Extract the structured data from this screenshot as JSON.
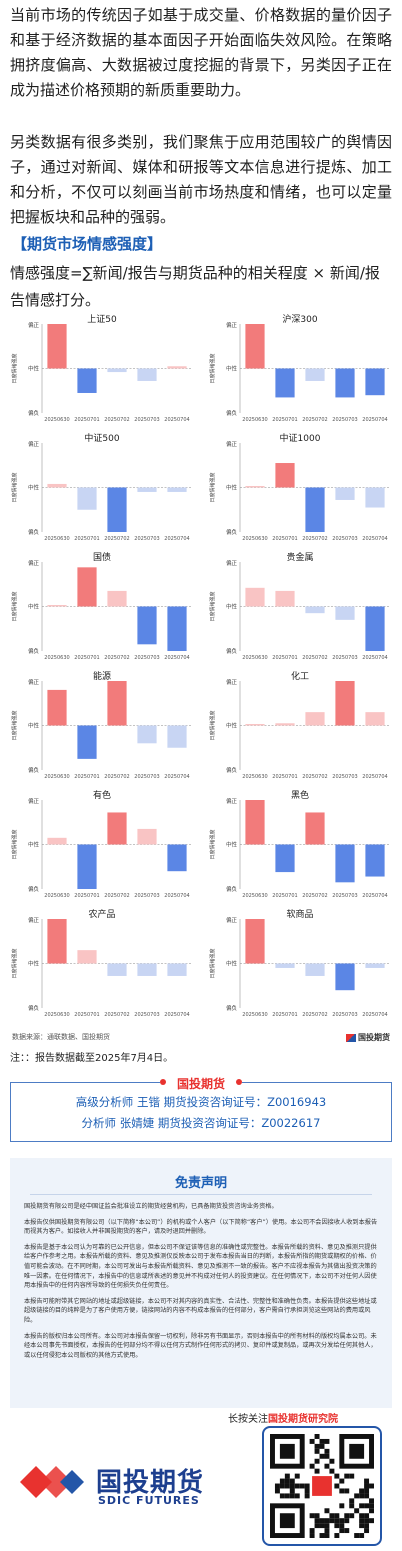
{
  "article": {
    "para1": "当前市场的传统因子如基于成交量、价格数据的量价因子和基于经济数据的基本面因子开始面临失效风险。在策略拥挤度偏高、大数据被过度挖掘的背景下，另类因子正在成为描述价格预期的新质重要助力。",
    "para2": "另类数据有很多类别，我们聚焦于应用范围较广的舆情因子，通过对新闻、媒体和研报等文本信息进行提炼、加工和分析，不仅可以刻画当前市场热度和情绪，也可以定量把握板块和品种的强弱。",
    "section_title": "【期货市场情感强度】",
    "formula": "情感强度=∑新闻/报告与期货品种的相关程度 × 新闻/报告情感打分。"
  },
  "chart_common": {
    "y_top_label": "偏正",
    "y_mid_label": "中性",
    "y_bottom_label": "偏负",
    "y_axis_title": "日度情绪强度",
    "dates": [
      "20250630",
      "20250701",
      "20250702",
      "20250703",
      "20250704"
    ]
  },
  "chart_data": [
    {
      "type": "bar",
      "title": "上证50",
      "categories": [
        "20250630",
        "20250701",
        "20250702",
        "20250703",
        "20250704"
      ],
      "values": [
        1.0,
        -0.55,
        -0.08,
        -0.28,
        0.05
      ],
      "ylim": [
        -1,
        1
      ]
    },
    {
      "type": "bar",
      "title": "沪深300",
      "categories": [
        "20250630",
        "20250701",
        "20250702",
        "20250703",
        "20250704"
      ],
      "values": [
        1.0,
        -0.65,
        -0.28,
        -0.65,
        -0.6
      ],
      "ylim": [
        -1,
        1
      ]
    },
    {
      "type": "bar",
      "title": "中证500",
      "categories": [
        "20250630",
        "20250701",
        "20250702",
        "20250703",
        "20250704"
      ],
      "values": [
        0.08,
        -0.5,
        -1.0,
        -0.1,
        -0.1
      ],
      "ylim": [
        -1,
        1
      ]
    },
    {
      "type": "bar",
      "title": "中证1000",
      "categories": [
        "20250630",
        "20250701",
        "20250702",
        "20250703",
        "20250704"
      ],
      "values": [
        0.0,
        0.55,
        -1.0,
        -0.28,
        -0.45
      ],
      "ylim": [
        -1,
        1
      ]
    },
    {
      "type": "bar",
      "title": "国债",
      "categories": [
        "20250630",
        "20250701",
        "20250702",
        "20250703",
        "20250704"
      ],
      "values": [
        0.0,
        0.88,
        0.35,
        -0.85,
        -1.0
      ],
      "ylim": [
        -1,
        1
      ]
    },
    {
      "type": "bar",
      "title": "贵金属",
      "categories": [
        "20250630",
        "20250701",
        "20250702",
        "20250703",
        "20250704"
      ],
      "values": [
        0.42,
        0.35,
        -0.15,
        -0.3,
        -1.0
      ],
      "ylim": [
        -1,
        1
      ]
    },
    {
      "type": "bar",
      "title": "能源",
      "categories": [
        "20250630",
        "20250701",
        "20250702",
        "20250703",
        "20250704"
      ],
      "values": [
        0.8,
        -0.75,
        1.0,
        -0.4,
        -0.5
      ],
      "ylim": [
        -1,
        1
      ]
    },
    {
      "type": "bar",
      "title": "化工",
      "categories": [
        "20250630",
        "20250701",
        "20250702",
        "20250703",
        "20250704"
      ],
      "values": [
        0.0,
        0.05,
        0.3,
        1.0,
        0.3
      ],
      "ylim": [
        -1,
        1
      ]
    },
    {
      "type": "bar",
      "title": "有色",
      "categories": [
        "20250630",
        "20250701",
        "20250702",
        "20250703",
        "20250704"
      ],
      "values": [
        0.15,
        -1.0,
        0.72,
        0.35,
        -0.6
      ],
      "ylim": [
        -1,
        1
      ]
    },
    {
      "type": "bar",
      "title": "黑色",
      "categories": [
        "20250630",
        "20250701",
        "20250702",
        "20250703",
        "20250704"
      ],
      "values": [
        1.0,
        -0.62,
        0.72,
        -0.85,
        -0.72
      ],
      "ylim": [
        -1,
        1
      ]
    },
    {
      "type": "bar",
      "title": "农产品",
      "categories": [
        "20250630",
        "20250701",
        "20250702",
        "20250703",
        "20250704"
      ],
      "values": [
        1.0,
        0.3,
        -0.28,
        -0.28,
        -0.28
      ],
      "ylim": [
        -1,
        1
      ]
    },
    {
      "type": "bar",
      "title": "软商品",
      "categories": [
        "20250630",
        "20250701",
        "20250702",
        "20250703",
        "20250704"
      ],
      "values": [
        1.0,
        -0.1,
        -0.28,
        -0.6,
        -0.1
      ],
      "ylim": [
        -1,
        1
      ]
    }
  ],
  "source": {
    "text": "数据来源：通联数据、国投期货",
    "logo_text": "国投期货"
  },
  "note": "注：：报告数据截至2025年7月4日。",
  "analyst": {
    "header": "国投期货",
    "line1": "高级分析师  王锴  期货投资咨询证号：Z0016943",
    "line2": "分析师  张婧婕  期货投资咨询证号：Z0022617"
  },
  "disclaimer": {
    "title": "免责声明",
    "paragraphs": [
      "国投期货有限公司是经中国证监会批准设立的期货经营机构，已具备期货投资咨询业务资格。",
      "本报告仅供国投期货有限公司（以下简称“本公司”）的机构或个人客户（以下简称“客户”）使用。本公司不会因接收人收到本报告而视其为客户。如接收人并非国投期货的客户，请及时退回并删除。",
      "本报告是基于本公司认为可靠的已公开信息，但本公司不保证该等信息的准确性或完整性。本报告所载的资料、意见及推测只提供给客户作参考之用。本报告所载的资料、意见及推测仅反映本公司于发布本报告当日的判断，本报告所指的期货或期权的价格、价值可能会波动。在不同时期，本公司可发出与本报告所载资料、意见及推测不一致的报告。客户不应视本报告为其做出投资决策的唯一因素。在任何情况下，本报告中的信息或所表述的意见并不构成对任何人的投资建议。在任何情况下，本公司不对任何人因使用本报告中的任何内容所导致的任何损失负任何责任。",
      "本报告可能附带其它网站的地址或超级链接，本公司不对其内容的真实性、合法性、完整性和准确性负责。本报告提供这些地址或超级链接的目的纯粹是为了客户使用方便，链接网站的内容不构成本报告的任何部分，客户需自行承担浏览这些网站的费用或风险。",
      "本报告的版权归本公司所有。本公司对本报告保留一切权利，除非另有书面显示，否则本报告中的所有材料的版权均属本公司。未经本公司事先书面授权，本报告的任何部分均不得以任何方式制作任何形式的拷贝、复印件或复制品，或再次分发给任何其他人，或以任何侵犯本公司版权的其他方式使用。"
    ]
  },
  "footer": {
    "follow_prefix": "长按关注",
    "follow_highlight": "国投期货研究院",
    "brand_cn": "国投期货",
    "brand_en": "SDIC FUTURES"
  },
  "colors": {
    "positive_strong": "#f27b7b",
    "positive_light": "#f9c4c4",
    "negative_strong": "#5b86e5",
    "negative_light": "#c8d5f3",
    "brand_blue": "#1d5fb5",
    "brand_red": "#e8322f"
  }
}
